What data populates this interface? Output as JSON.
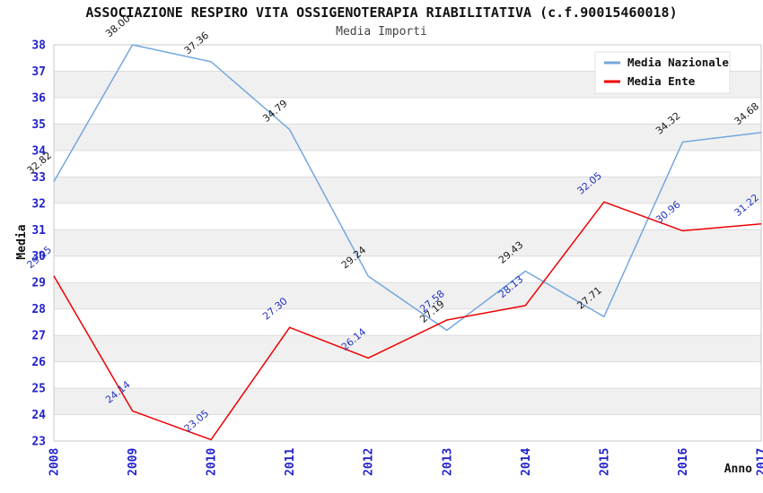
{
  "chart_data": {
    "type": "line",
    "title": "ASSOCIAZIONE RESPIRO VITA OSSIGENOTERAPIA RIABILITATIVA (c.f.90015460018)",
    "subtitle": "Media Importi",
    "xlabel": "Anno",
    "ylabel": "Media",
    "x": [
      "2008",
      "2009",
      "2010",
      "2011",
      "2012",
      "2013",
      "2014",
      "2015",
      "2016",
      "2017"
    ],
    "ylim": [
      23,
      38
    ],
    "ytick_step": 1,
    "grid": "horizontal-bands",
    "legend_position": "top-right",
    "series": [
      {
        "name": "Media Nazionale",
        "color": "#74A7DE",
        "label_color": "#1A1A1A",
        "values": [
          32.82,
          38.0,
          37.36,
          34.79,
          29.24,
          27.19,
          29.43,
          27.71,
          34.32,
          34.68
        ]
      },
      {
        "name": "Media Ente",
        "color": "#EE0000",
        "label_color": "#2233BB",
        "values": [
          29.25,
          24.14,
          23.05,
          27.3,
          26.14,
          27.58,
          28.13,
          32.05,
          30.96,
          31.22
        ]
      }
    ],
    "colors": {
      "tick_label": "#2222CC",
      "band": "#F0F0F0",
      "grid": "#DCDCDC",
      "border": "#C8C8C8",
      "legend_bg": "#FFFFFF",
      "legend_border": "#E2E2E2"
    }
  }
}
